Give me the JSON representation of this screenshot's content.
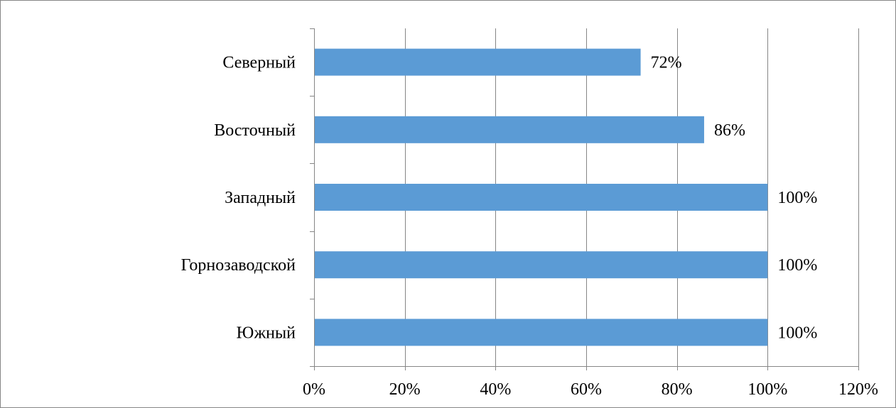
{
  "chart_data": {
    "type": "bar",
    "orientation": "horizontal",
    "categories": [
      "Северный",
      "Восточный",
      "Западный",
      "Горнозаводской",
      "Южный"
    ],
    "values": [
      72,
      86,
      100,
      100,
      100
    ],
    "data_labels": [
      "72%",
      "86%",
      "100%",
      "100%",
      "100%"
    ],
    "xlim": [
      0,
      120
    ],
    "x_ticks": [
      0,
      20,
      40,
      60,
      80,
      100,
      120
    ],
    "x_tick_labels": [
      "0%",
      "20%",
      "40%",
      "60%",
      "80%",
      "100%",
      "120%"
    ],
    "title": "",
    "xlabel": "",
    "ylabel": "",
    "grid": "vertical",
    "legend": "none",
    "bar_color": "#5b9bd5"
  }
}
